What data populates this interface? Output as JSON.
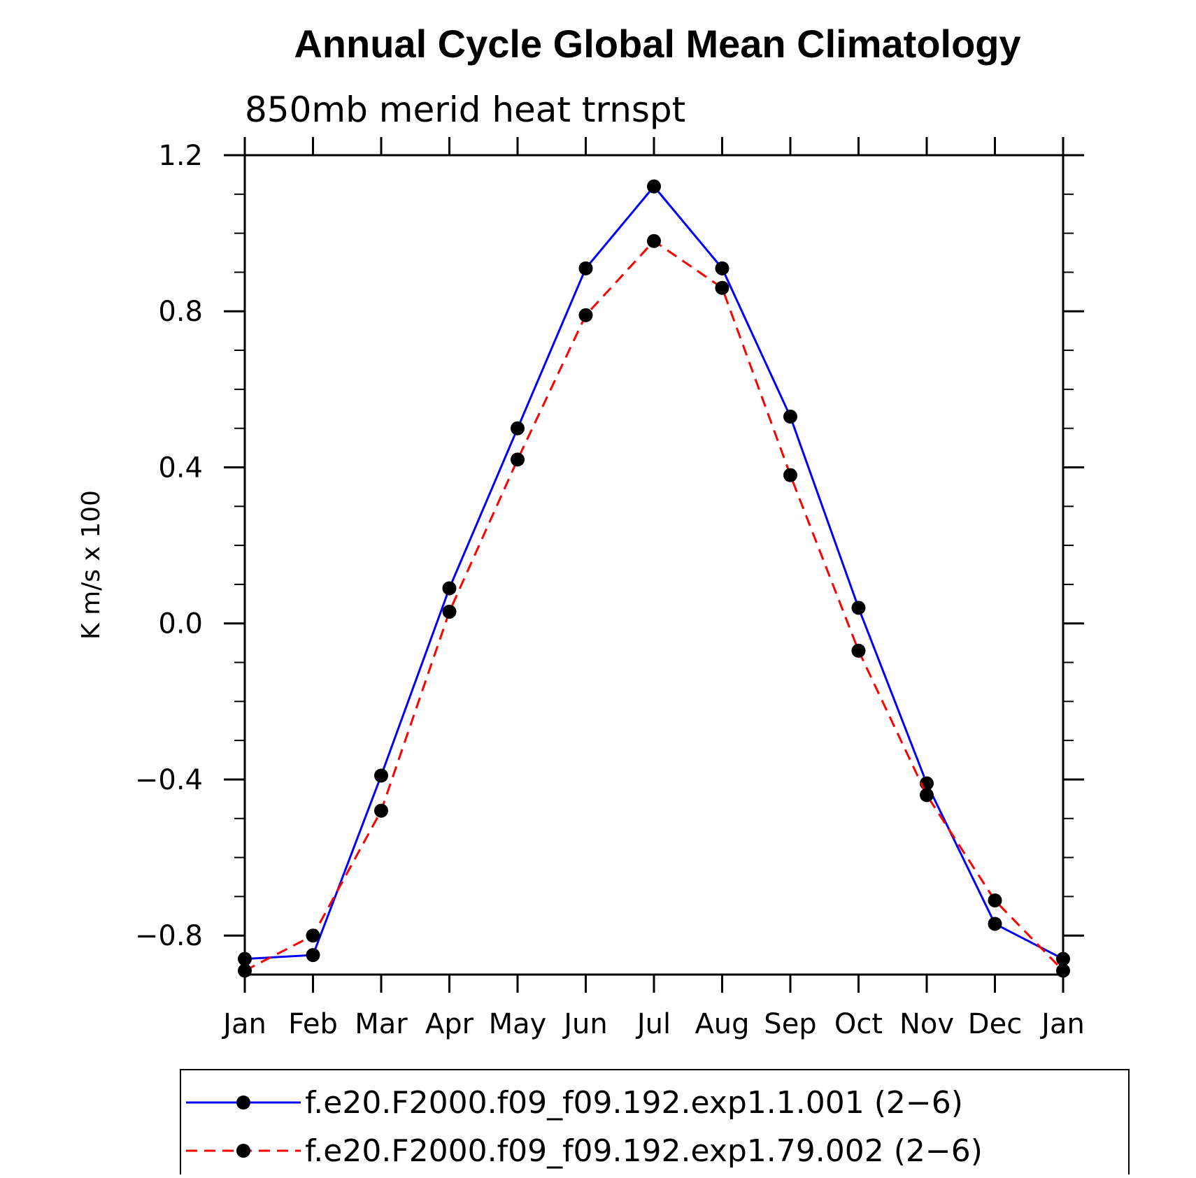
{
  "chart_data": {
    "type": "line",
    "title": "Annual Cycle Global Mean Climatology",
    "subtitle": "850mb merid heat trnspt",
    "xlabel": "",
    "ylabel": "K m/s x 100",
    "categories": [
      "Jan",
      "Feb",
      "Mar",
      "Apr",
      "May",
      "Jun",
      "Jul",
      "Aug",
      "Sep",
      "Oct",
      "Nov",
      "Dec",
      "Jan"
    ],
    "ylim": [
      -0.9,
      1.2
    ],
    "yticks": [
      1.2,
      0.8,
      0.4,
      0.0,
      -0.4,
      -0.8
    ],
    "ytick_labels": [
      "1.2",
      "0.8",
      "0.4",
      "0.0",
      "−0.4",
      "−0.8"
    ],
    "grid": false,
    "legend_position": "bottom",
    "series": [
      {
        "name": "f.e20.F2000.f09_f09.192.exp1.1.001 (2−6)",
        "color": "#0000ff",
        "line_style": "solid",
        "marker": "filled-circle",
        "values": [
          -0.86,
          -0.85,
          -0.39,
          0.09,
          0.5,
          0.91,
          1.12,
          0.91,
          0.53,
          0.04,
          -0.41,
          -0.77,
          -0.86
        ]
      },
      {
        "name": "f.e20.F2000.f09_f09.192.exp1.79.002 (2−6)",
        "color": "#ff0000",
        "line_style": "dashed",
        "marker": "filled-circle",
        "values": [
          -0.89,
          -0.8,
          -0.48,
          0.03,
          0.42,
          0.79,
          0.98,
          0.86,
          0.38,
          -0.07,
          -0.44,
          -0.71,
          -0.89
        ]
      }
    ]
  }
}
